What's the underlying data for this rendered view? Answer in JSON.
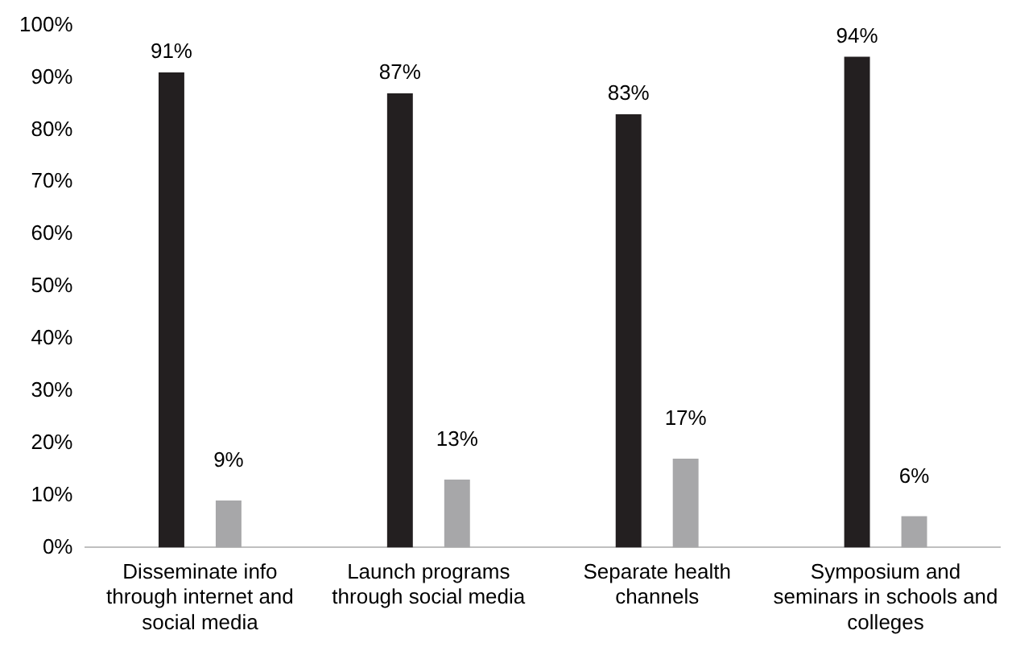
{
  "chart_data": {
    "type": "bar",
    "categories": [
      "Disseminate info through internet and social media",
      "Launch programs through social media",
      "Separate health channels",
      "Symposium and seminars in schools and colleges"
    ],
    "series": [
      {
        "color": "#231f20",
        "values": [
          91,
          87,
          83,
          94
        ],
        "value_labels": [
          "91%",
          "87%",
          "83%",
          "94%"
        ]
      },
      {
        "color": "#a7a7a9",
        "values": [
          9,
          13,
          17,
          6
        ],
        "value_labels": [
          "9%",
          "13%",
          "17%",
          "6%"
        ]
      }
    ],
    "ylim": [
      0,
      100
    ],
    "yticks": [
      {
        "value": 0,
        "label": "0%"
      },
      {
        "value": 10,
        "label": "10%"
      },
      {
        "value": 20,
        "label": "20%"
      },
      {
        "value": 30,
        "label": "30%"
      },
      {
        "value": 40,
        "label": "40%"
      },
      {
        "value": 50,
        "label": "50%"
      },
      {
        "value": 60,
        "label": "60%"
      },
      {
        "value": 70,
        "label": "70%"
      },
      {
        "value": 80,
        "label": "80%"
      },
      {
        "value": 90,
        "label": "90%"
      },
      {
        "value": 100,
        "label": "100%"
      }
    ],
    "grid": false,
    "legend": false
  }
}
